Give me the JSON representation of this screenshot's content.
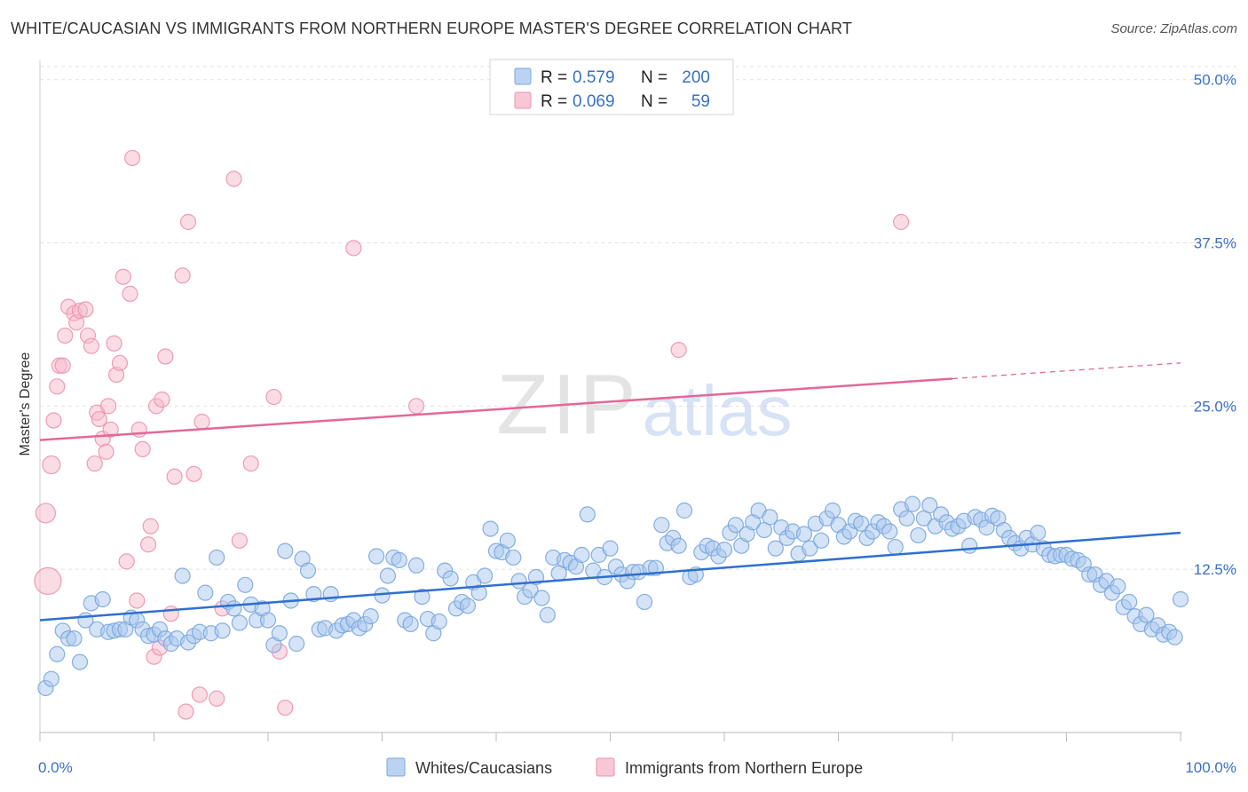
{
  "title": "WHITE/CAUCASIAN VS IMMIGRANTS FROM NORTHERN EUROPE MASTER'S DEGREE CORRELATION CHART",
  "source": "Source: ZipAtlas.com",
  "watermark": {
    "zip": "ZIP",
    "atlas": "atlas"
  },
  "colors": {
    "blue_fill": "#aac8ee",
    "blue_stroke": "#7aa6de",
    "blue_line": "#2f6fcf",
    "pink_fill": "#f6b9cb",
    "pink_stroke": "#ec92ad",
    "pink_line": "#e2689a",
    "axis_label": "#3a6fc4",
    "grid": "#e2e2e2"
  },
  "stats_legend": {
    "rows": [
      {
        "r_label": "R = ",
        "r_value": "0.579",
        "n_label": "N = ",
        "n_value": "200",
        "swatch": "blue"
      },
      {
        "r_label": "R = ",
        "r_value": "0.069",
        "n_label": "N = ",
        "n_value": "59",
        "swatch": "pink"
      }
    ]
  },
  "chart_data": {
    "type": "scatter",
    "title": "WHITE/CAUCASIAN VS IMMIGRANTS FROM NORTHERN EUROPE MASTER'S DEGREE CORRELATION CHART",
    "xlabel": "",
    "ylabel": "Master's Degree",
    "xlim": [
      0,
      100
    ],
    "ylim": [
      0,
      51
    ],
    "x_tick_labels": [
      "0.0%",
      "100.0%"
    ],
    "y_ticks": [
      12.5,
      25.0,
      37.5,
      50.0
    ],
    "y_tick_labels": [
      "12.5%",
      "25.0%",
      "37.5%",
      "50.0%"
    ],
    "grid": true,
    "legend_position": "bottom",
    "series": [
      {
        "name": "Whites/Caucasians",
        "color": "blue",
        "trend": {
          "x0": 0,
          "y0": 8.6,
          "x1": 100,
          "y1": 15.3
        },
        "points": [
          [
            0.5,
            3.4
          ],
          [
            1,
            4.1
          ],
          [
            1.5,
            6
          ],
          [
            2,
            7.8
          ],
          [
            2.5,
            7.2
          ],
          [
            3,
            7.2
          ],
          [
            3.5,
            5.4
          ],
          [
            4,
            8.6
          ],
          [
            4.5,
            9.9
          ],
          [
            5,
            7.9
          ],
          [
            5.5,
            10.2
          ],
          [
            6,
            7.7
          ],
          [
            6.5,
            7.8
          ],
          [
            7,
            7.9
          ],
          [
            7.5,
            7.9
          ],
          [
            8,
            8.8
          ],
          [
            8.5,
            8.6
          ],
          [
            9,
            7.9
          ],
          [
            9.5,
            7.4
          ],
          [
            10,
            7.5
          ],
          [
            10.5,
            7.9
          ],
          [
            11,
            7.2
          ],
          [
            11.5,
            6.8
          ],
          [
            12,
            7.2
          ],
          [
            12.5,
            12
          ],
          [
            13,
            6.9
          ],
          [
            13.5,
            7.4
          ],
          [
            14,
            7.7
          ],
          [
            14.5,
            10.7
          ],
          [
            15,
            7.6
          ],
          [
            15.5,
            13.4
          ],
          [
            16,
            7.8
          ],
          [
            16.5,
            10
          ],
          [
            17,
            9.5
          ],
          [
            17.5,
            8.4
          ],
          [
            18,
            11.3
          ],
          [
            18.5,
            9.8
          ],
          [
            19,
            8.6
          ],
          [
            19.5,
            9.5
          ],
          [
            20,
            8.6
          ],
          [
            20.5,
            6.7
          ],
          [
            21,
            7.6
          ],
          [
            21.5,
            13.9
          ],
          [
            22,
            10.1
          ],
          [
            22.5,
            6.8
          ],
          [
            23,
            13.3
          ],
          [
            23.5,
            12.4
          ],
          [
            24,
            10.6
          ],
          [
            24.5,
            7.9
          ],
          [
            25,
            8
          ],
          [
            25.5,
            10.6
          ],
          [
            26,
            7.8
          ],
          [
            26.5,
            8.2
          ],
          [
            27,
            8.3
          ],
          [
            27.5,
            8.6
          ],
          [
            28,
            8
          ],
          [
            28.5,
            8.3
          ],
          [
            29,
            8.9
          ],
          [
            29.5,
            13.5
          ],
          [
            30,
            10.5
          ],
          [
            30.5,
            12
          ],
          [
            31,
            13.4
          ],
          [
            31.5,
            13.2
          ],
          [
            32,
            8.6
          ],
          [
            32.5,
            8.3
          ],
          [
            33,
            12.8
          ],
          [
            33.5,
            10.4
          ],
          [
            34,
            8.7
          ],
          [
            34.5,
            7.6
          ],
          [
            35,
            8.5
          ],
          [
            35.5,
            12.4
          ],
          [
            36,
            11.8
          ],
          [
            36.5,
            9.5
          ],
          [
            37,
            10
          ],
          [
            37.5,
            9.7
          ],
          [
            38,
            11.5
          ],
          [
            38.5,
            10.7
          ],
          [
            39,
            12
          ],
          [
            39.5,
            15.6
          ],
          [
            40,
            13.9
          ],
          [
            40.5,
            13.8
          ],
          [
            41,
            14.7
          ],
          [
            41.5,
            13.4
          ],
          [
            42,
            11.6
          ],
          [
            42.5,
            10.4
          ],
          [
            43,
            10.9
          ],
          [
            43.5,
            11.9
          ],
          [
            44,
            10.3
          ],
          [
            44.5,
            9
          ],
          [
            45,
            13.4
          ],
          [
            45.5,
            12.2
          ],
          [
            46,
            13.2
          ],
          [
            46.5,
            13
          ],
          [
            47,
            12.7
          ],
          [
            47.5,
            13.6
          ],
          [
            48,
            16.7
          ],
          [
            48.5,
            12.4
          ],
          [
            49,
            13.6
          ],
          [
            49.5,
            11.9
          ],
          [
            50,
            14.1
          ],
          [
            50.5,
            12.7
          ],
          [
            51,
            12.1
          ],
          [
            51.5,
            11.6
          ],
          [
            52,
            12.3
          ],
          [
            52.5,
            12.3
          ],
          [
            53,
            10
          ],
          [
            53.5,
            12.6
          ],
          [
            54,
            12.6
          ],
          [
            54.5,
            15.9
          ],
          [
            55,
            14.5
          ],
          [
            55.5,
            14.9
          ],
          [
            56,
            14.3
          ],
          [
            56.5,
            17
          ],
          [
            57,
            11.9
          ],
          [
            57.5,
            12.1
          ],
          [
            58,
            13.8
          ],
          [
            58.5,
            14.3
          ],
          [
            59,
            14.1
          ],
          [
            59.5,
            13.5
          ],
          [
            60,
            14
          ],
          [
            60.5,
            15.3
          ],
          [
            61,
            15.9
          ],
          [
            61.5,
            14.3
          ],
          [
            62,
            15.2
          ],
          [
            62.5,
            16.1
          ],
          [
            63,
            17
          ],
          [
            63.5,
            15.5
          ],
          [
            64,
            16.5
          ],
          [
            64.5,
            14.1
          ],
          [
            65,
            15.7
          ],
          [
            65.5,
            14.9
          ],
          [
            66,
            15.4
          ],
          [
            66.5,
            13.7
          ],
          [
            67,
            15.2
          ],
          [
            67.5,
            14.1
          ],
          [
            68,
            16
          ],
          [
            68.5,
            14.7
          ],
          [
            69,
            16.4
          ],
          [
            69.5,
            17
          ],
          [
            70,
            15.9
          ],
          [
            70.5,
            15
          ],
          [
            71,
            15.4
          ],
          [
            71.5,
            16.2
          ],
          [
            72,
            16
          ],
          [
            72.5,
            14.9
          ],
          [
            73,
            15.4
          ],
          [
            73.5,
            16.1
          ],
          [
            74,
            15.8
          ],
          [
            74.5,
            15.4
          ],
          [
            75,
            14.2
          ],
          [
            75.5,
            17.1
          ],
          [
            76,
            16.4
          ],
          [
            76.5,
            17.5
          ],
          [
            77,
            15.1
          ],
          [
            77.5,
            16.4
          ],
          [
            78,
            17.4
          ],
          [
            78.5,
            15.8
          ],
          [
            79,
            16.7
          ],
          [
            79.5,
            16.1
          ],
          [
            80,
            15.6
          ],
          [
            80.5,
            15.8
          ],
          [
            81,
            16.2
          ],
          [
            81.5,
            14.3
          ],
          [
            82,
            16.5
          ],
          [
            82.5,
            16.3
          ],
          [
            83,
            15.7
          ],
          [
            83.5,
            16.6
          ],
          [
            84,
            16.4
          ],
          [
            84.5,
            15.5
          ],
          [
            85,
            14.9
          ],
          [
            85.5,
            14.5
          ],
          [
            86,
            14.1
          ],
          [
            86.5,
            14.9
          ],
          [
            87,
            14.4
          ],
          [
            87.5,
            15.3
          ],
          [
            88,
            14.1
          ],
          [
            88.5,
            13.6
          ],
          [
            89,
            13.5
          ],
          [
            89.5,
            13.6
          ],
          [
            90,
            13.6
          ],
          [
            90.5,
            13.3
          ],
          [
            91,
            13.2
          ],
          [
            91.5,
            12.9
          ],
          [
            92,
            12.1
          ],
          [
            92.5,
            12.1
          ],
          [
            93,
            11.3
          ],
          [
            93.5,
            11.6
          ],
          [
            94,
            10.7
          ],
          [
            94.5,
            11.2
          ],
          [
            95,
            9.6
          ],
          [
            95.5,
            10
          ],
          [
            96,
            8.9
          ],
          [
            96.5,
            8.3
          ],
          [
            97,
            9
          ],
          [
            97.5,
            7.9
          ],
          [
            98,
            8.2
          ],
          [
            98.5,
            7.5
          ],
          [
            99,
            7.7
          ],
          [
            99.5,
            7.3
          ],
          [
            100,
            10.2
          ]
        ]
      },
      {
        "name": "Immigrants from Northern Europe",
        "color": "pink",
        "trend": {
          "x0": 0,
          "y0": 22.4,
          "x1": 80,
          "y1": 27.1,
          "dash_to_x": 100,
          "dash_to_y": 28.3
        },
        "points": [
          [
            0.5,
            16.8
          ],
          [
            0.7,
            11.6
          ],
          [
            1,
            20.5
          ],
          [
            1.2,
            23.9
          ],
          [
            1.5,
            26.5
          ],
          [
            1.7,
            28.1
          ],
          [
            2,
            28.1
          ],
          [
            2.2,
            30.4
          ],
          [
            2.5,
            32.6
          ],
          [
            3,
            32.1
          ],
          [
            3.2,
            31.4
          ],
          [
            3.5,
            32.3
          ],
          [
            4,
            32.4
          ],
          [
            4.2,
            30.4
          ],
          [
            4.5,
            29.6
          ],
          [
            4.8,
            20.6
          ],
          [
            5,
            24.5
          ],
          [
            5.2,
            24
          ],
          [
            5.5,
            22.5
          ],
          [
            5.8,
            21.5
          ],
          [
            6,
            25
          ],
          [
            6.2,
            23.2
          ],
          [
            6.5,
            29.8
          ],
          [
            6.7,
            27.4
          ],
          [
            7,
            28.3
          ],
          [
            7.3,
            34.9
          ],
          [
            7.6,
            13.1
          ],
          [
            7.9,
            33.6
          ],
          [
            8.1,
            44
          ],
          [
            8.5,
            10.1
          ],
          [
            8.7,
            23.2
          ],
          [
            9,
            21.7
          ],
          [
            9.5,
            14.4
          ],
          [
            9.7,
            15.8
          ],
          [
            10,
            5.8
          ],
          [
            10.2,
            25
          ],
          [
            10.5,
            6.5
          ],
          [
            10.7,
            25.5
          ],
          [
            11,
            28.8
          ],
          [
            11.5,
            9.1
          ],
          [
            11.8,
            19.6
          ],
          [
            12.5,
            35
          ],
          [
            12.8,
            1.6
          ],
          [
            13,
            39.1
          ],
          [
            13.5,
            19.8
          ],
          [
            14,
            2.9
          ],
          [
            14.2,
            23.8
          ],
          [
            15.5,
            2.6
          ],
          [
            16,
            9.5
          ],
          [
            17,
            42.4
          ],
          [
            17.5,
            14.7
          ],
          [
            18.5,
            20.6
          ],
          [
            20.5,
            25.7
          ],
          [
            21,
            6.2
          ],
          [
            21.5,
            1.9
          ],
          [
            27.5,
            37.1
          ],
          [
            33,
            25
          ],
          [
            56,
            29.3
          ],
          [
            75.5,
            39.1
          ]
        ]
      }
    ]
  }
}
